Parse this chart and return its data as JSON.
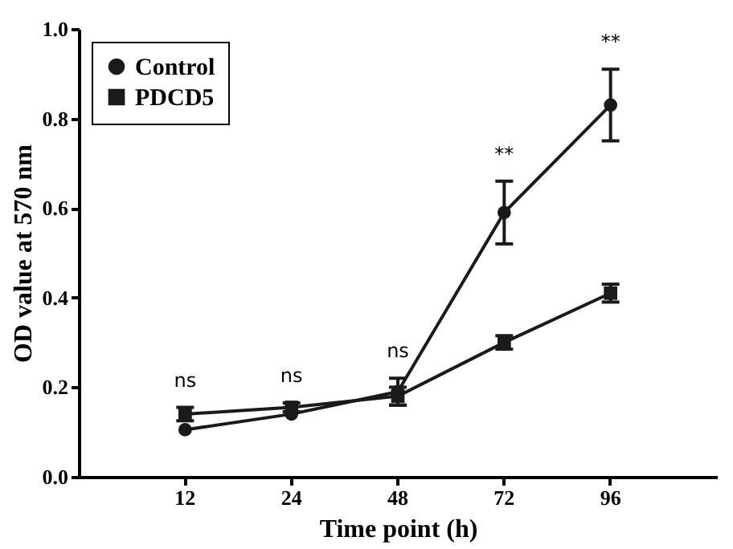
{
  "chart_data": {
    "type": "line",
    "xlabel": "Time point (h)",
    "ylabel": "OD value at 570 nm",
    "categories": [
      "12",
      "24",
      "48",
      "72",
      "96"
    ],
    "series": [
      {
        "name": "Control",
        "color": "#1a1a1a",
        "marker": "circle",
        "values": [
          0.105,
          0.14,
          0.19,
          0.59,
          0.83
        ],
        "errors": [
          null,
          null,
          0.03,
          0.07,
          0.08
        ]
      },
      {
        "name": "PDCD5",
        "color": "#1a1a1a",
        "marker": "square",
        "values": [
          0.14,
          0.155,
          0.18,
          0.3,
          0.41
        ],
        "errors": [
          0.015,
          0.01,
          0.02,
          0.015,
          0.02
        ]
      }
    ],
    "ylim": [
      0,
      1.0
    ],
    "yticks": [
      {
        "value": 0,
        "label": "0.0"
      },
      {
        "value": 0.2,
        "label": "0.2"
      },
      {
        "value": 0.4,
        "label": "0.4"
      },
      {
        "value": 0.6,
        "label": "0.6"
      },
      {
        "value": 0.8,
        "label": "0.8"
      },
      {
        "value": 1.0,
        "label": "1.0"
      }
    ],
    "annotations": [
      "ns",
      "ns",
      "ns",
      "**",
      "**"
    ],
    "legend": "top left",
    "grid": false
  }
}
